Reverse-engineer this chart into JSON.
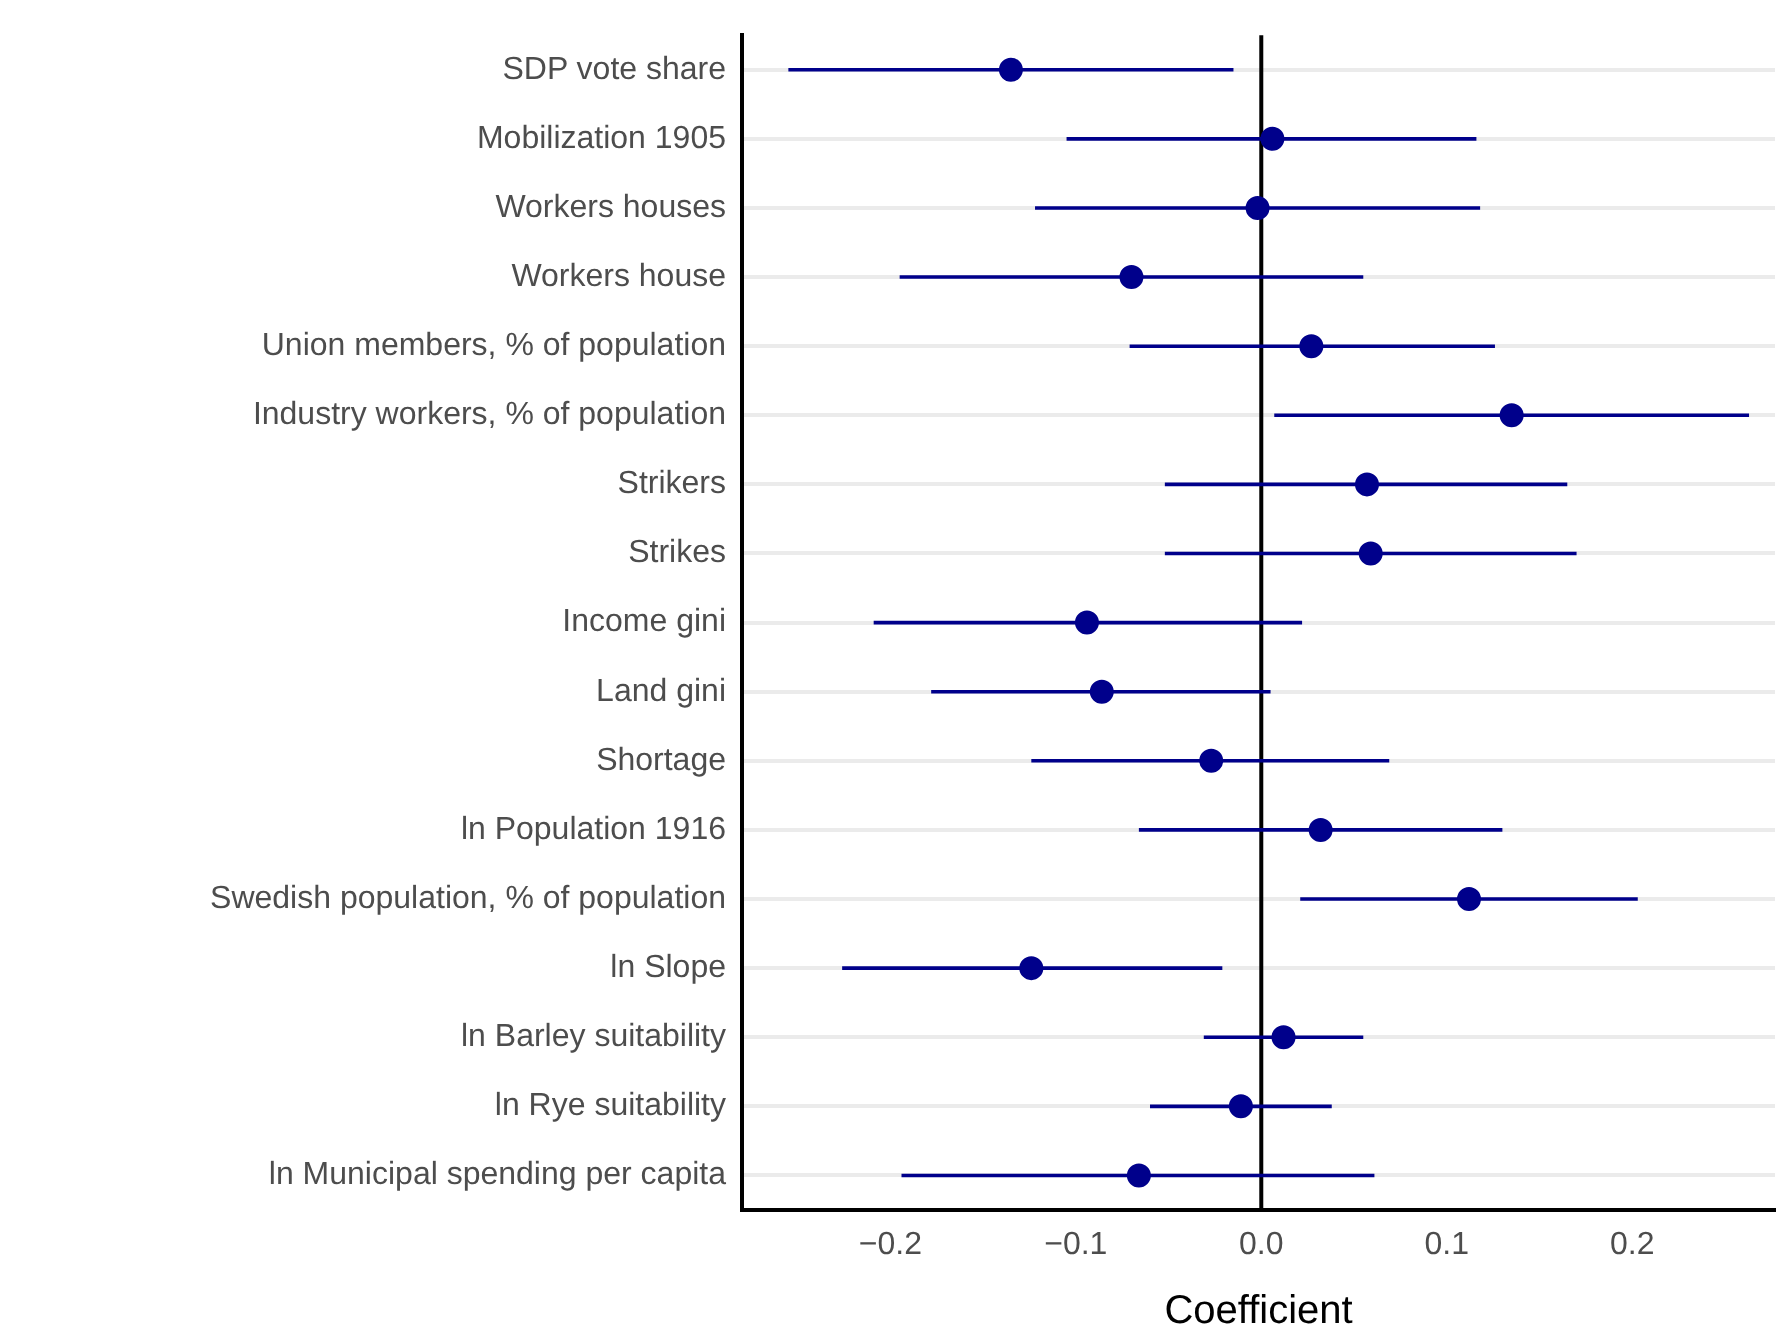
{
  "chart_data": {
    "type": "scatter",
    "orientation": "horizontal",
    "xlabel": "Coefficient",
    "categories": [
      "SDP vote share",
      "Mobilization 1905",
      "Workers houses",
      "Workers house",
      "Union members, % of population",
      "Industry workers, % of population",
      "Strikers",
      "Strikes",
      "Income gini",
      "Land gini",
      "Shortage",
      "ln Population 1916",
      "Swedish population, % of population",
      "ln Slope",
      "ln Barley suitability",
      "ln Rye suitability",
      "ln Municipal spending per capita"
    ],
    "series": [
      {
        "color": "#00008b",
        "values": [
          -0.135,
          0.006,
          -0.002,
          -0.07,
          0.027,
          0.135,
          0.057,
          0.059,
          -0.094,
          -0.086,
          -0.027,
          0.032,
          0.112,
          -0.124,
          0.012,
          -0.011,
          -0.066
        ],
        "errors": [
          [
            -0.255,
            -0.015
          ],
          [
            -0.105,
            0.116
          ],
          [
            -0.122,
            0.118
          ],
          [
            -0.195,
            0.055
          ],
          [
            -0.071,
            0.126
          ],
          [
            0.007,
            0.263
          ],
          [
            -0.052,
            0.165
          ],
          [
            -0.052,
            0.17
          ],
          [
            -0.209,
            0.022
          ],
          [
            -0.178,
            0.005
          ],
          [
            -0.124,
            0.069
          ],
          [
            -0.066,
            0.13
          ],
          [
            0.021,
            0.203
          ],
          [
            -0.226,
            -0.021
          ],
          [
            -0.031,
            0.055
          ],
          [
            -0.06,
            0.038
          ],
          [
            -0.194,
            0.061
          ]
        ]
      }
    ],
    "xlim": [
      -0.28,
      0.277
    ],
    "xticks": [
      {
        "value": -0.2,
        "label": "−0.2"
      },
      {
        "value": -0.1,
        "label": "−0.1"
      },
      {
        "value": 0,
        "label": "0.0"
      },
      0.1,
      0.2
    ],
    "ref_lines": [
      {
        "axis": "x",
        "value": 0,
        "color": "#000000"
      }
    ],
    "grid": "y",
    "legend": false,
    "marker": "circle"
  }
}
